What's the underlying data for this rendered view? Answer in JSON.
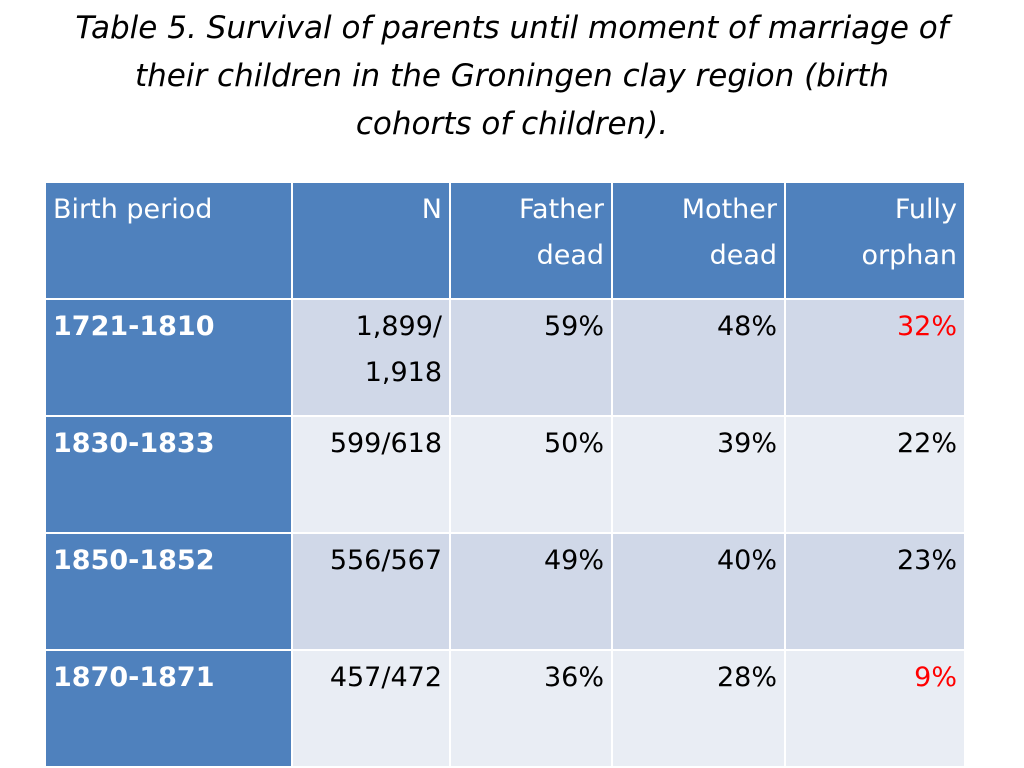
{
  "title": {
    "line1": "Table 5. Survival of parents until moment of marriage of",
    "line2": "their children in the Groningen clay region (birth",
    "line3": "cohorts of children)."
  },
  "table": {
    "headers": [
      {
        "line1": "Birth period",
        "line2": ""
      },
      {
        "line1": "N",
        "line2": ""
      },
      {
        "line1": "Father",
        "line2": "dead"
      },
      {
        "line1": "Mother",
        "line2": "dead"
      },
      {
        "line1": "Fully",
        "line2": "orphan"
      }
    ],
    "rows": [
      {
        "period": "1721-1810",
        "n_line1": "1,899/",
        "n_line2": "1,918",
        "father_dead": "59%",
        "mother_dead": "48%",
        "fully_orphan": "32%"
      },
      {
        "period": "1830-1833",
        "n_line1": "599/618",
        "n_line2": "",
        "father_dead": "50%",
        "mother_dead": "39%",
        "fully_orphan": "22%"
      },
      {
        "period": "1850-1852",
        "n_line1": "556/567",
        "n_line2": "",
        "father_dead": "49%",
        "mother_dead": "40%",
        "fully_orphan": "23%"
      },
      {
        "period": "1870-1871",
        "n_line1": "457/472",
        "n_line2": "",
        "father_dead": "36%",
        "mother_dead": "28%",
        "fully_orphan": "9%"
      }
    ],
    "highlighted_values": [
      "32%",
      "9%"
    ]
  },
  "colors": {
    "header_fill": "#4f81bd",
    "band_dark": "#d0d8e8",
    "band_light": "#e9edf4",
    "highlight_text": "#ff0000",
    "body_text": "#000000",
    "header_text": "#ffffff"
  }
}
